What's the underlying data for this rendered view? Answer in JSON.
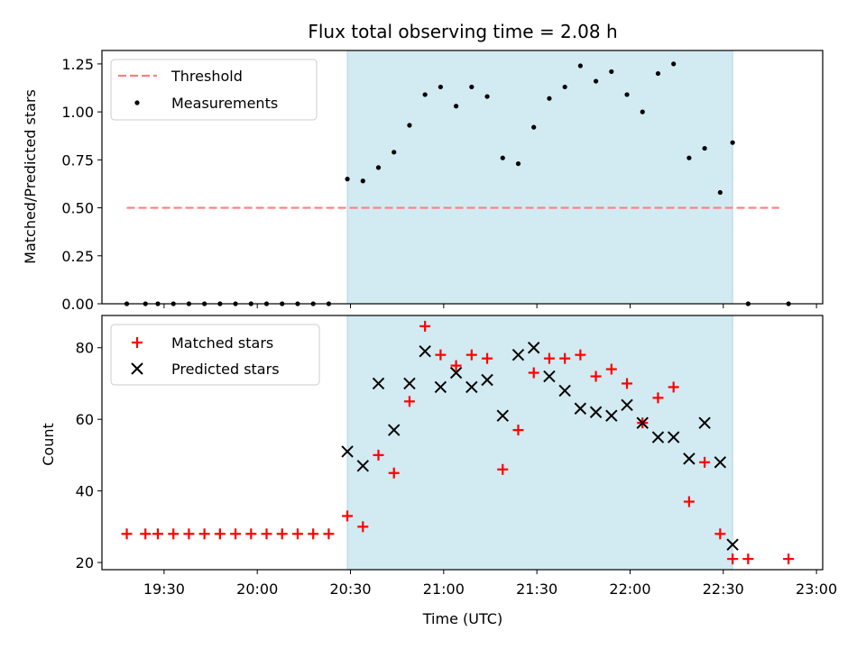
{
  "colors": {
    "shade": "#add8e6",
    "threshold": "#ff7f7f",
    "measurement": "#000000",
    "matched": "#ff0000",
    "predicted": "#000000"
  },
  "chart_data": [
    {
      "type": "scatter",
      "title": "Flux total observing time = 2.08 h",
      "xlabel": "",
      "ylabel": "Matched/Predicted stars",
      "ylim": [
        0,
        1.32
      ],
      "yticks": [
        "0.00",
        "0.25",
        "0.50",
        "0.75",
        "1.00",
        "1.25"
      ],
      "shaded_interval": [
        "20:29",
        "22:33"
      ],
      "legend": {
        "placement": "top-left",
        "entries": [
          "Threshold",
          "Measurements"
        ]
      },
      "series": [
        {
          "name": "Threshold",
          "kind": "dashed-line",
          "x": [
            "19:18",
            "22:48"
          ],
          "y": [
            0.5,
            0.5
          ]
        },
        {
          "name": "Measurements",
          "kind": "dots",
          "x": [
            "19:18",
            "19:24",
            "19:28",
            "19:33",
            "19:38",
            "19:43",
            "19:48",
            "19:53",
            "19:58",
            "20:03",
            "20:08",
            "20:13",
            "20:18",
            "20:23",
            "20:29",
            "20:34",
            "20:39",
            "20:44",
            "20:49",
            "20:54",
            "20:59",
            "21:04",
            "21:09",
            "21:14",
            "21:19",
            "21:24",
            "21:29",
            "21:34",
            "21:39",
            "21:44",
            "21:49",
            "21:54",
            "21:59",
            "22:04",
            "22:09",
            "22:14",
            "22:19",
            "22:24",
            "22:29",
            "22:33",
            "22:38",
            "22:51"
          ],
          "y": [
            0,
            0,
            0,
            0,
            0,
            0,
            0,
            0,
            0,
            0,
            0,
            0,
            0,
            0,
            0.65,
            0.64,
            0.71,
            0.79,
            0.93,
            1.09,
            1.13,
            1.03,
            1.13,
            1.08,
            0.76,
            0.73,
            0.92,
            1.07,
            1.13,
            1.24,
            1.16,
            1.21,
            1.09,
            1.0,
            1.2,
            1.25,
            0.76,
            0.81,
            0.58,
            0.84,
            0,
            0
          ]
        }
      ]
    },
    {
      "type": "scatter",
      "title": "",
      "xlabel": "Time (UTC)",
      "ylabel": "Count",
      "ylim": [
        18,
        89
      ],
      "yticks": [
        "20",
        "40",
        "60",
        "80"
      ],
      "xlim": [
        "19:10",
        "23:02"
      ],
      "xticks": [
        "19:30",
        "20:00",
        "20:30",
        "21:00",
        "21:30",
        "22:00",
        "22:30",
        "23:00"
      ],
      "shaded_interval": [
        "20:29",
        "22:33"
      ],
      "legend": {
        "placement": "top-left",
        "entries": [
          "Matched stars",
          "Predicted stars"
        ]
      },
      "series": [
        {
          "name": "Matched stars",
          "marker": "plus",
          "x": [
            "19:18",
            "19:24",
            "19:28",
            "19:33",
            "19:38",
            "19:43",
            "19:48",
            "19:53",
            "19:58",
            "20:03",
            "20:08",
            "20:13",
            "20:18",
            "20:23",
            "20:29",
            "20:34",
            "20:39",
            "20:44",
            "20:49",
            "20:54",
            "20:59",
            "21:04",
            "21:09",
            "21:14",
            "21:19",
            "21:24",
            "21:29",
            "21:34",
            "21:39",
            "21:44",
            "21:49",
            "21:54",
            "21:59",
            "22:04",
            "22:09",
            "22:14",
            "22:19",
            "22:24",
            "22:29",
            "22:33",
            "22:38",
            "22:51"
          ],
          "y": [
            28,
            28,
            28,
            28,
            28,
            28,
            28,
            28,
            28,
            28,
            28,
            28,
            28,
            28,
            33,
            30,
            50,
            45,
            65,
            86,
            78,
            75,
            78,
            77,
            46,
            57,
            73,
            77,
            77,
            78,
            72,
            74,
            70,
            59,
            66,
            69,
            37,
            48,
            28,
            21,
            21,
            21
          ]
        },
        {
          "name": "Predicted stars",
          "marker": "x",
          "x": [
            "20:29",
            "20:34",
            "20:39",
            "20:44",
            "20:49",
            "20:54",
            "20:59",
            "21:04",
            "21:09",
            "21:14",
            "21:19",
            "21:24",
            "21:29",
            "21:34",
            "21:39",
            "21:44",
            "21:49",
            "21:54",
            "21:59",
            "22:04",
            "22:09",
            "22:14",
            "22:19",
            "22:24",
            "22:29",
            "22:33"
          ],
          "y": [
            51,
            47,
            70,
            57,
            70,
            79,
            69,
            73,
            69,
            71,
            61,
            78,
            80,
            72,
            68,
            63,
            62,
            61,
            64,
            59,
            55,
            55,
            49,
            59,
            48,
            25
          ]
        }
      ]
    }
  ]
}
